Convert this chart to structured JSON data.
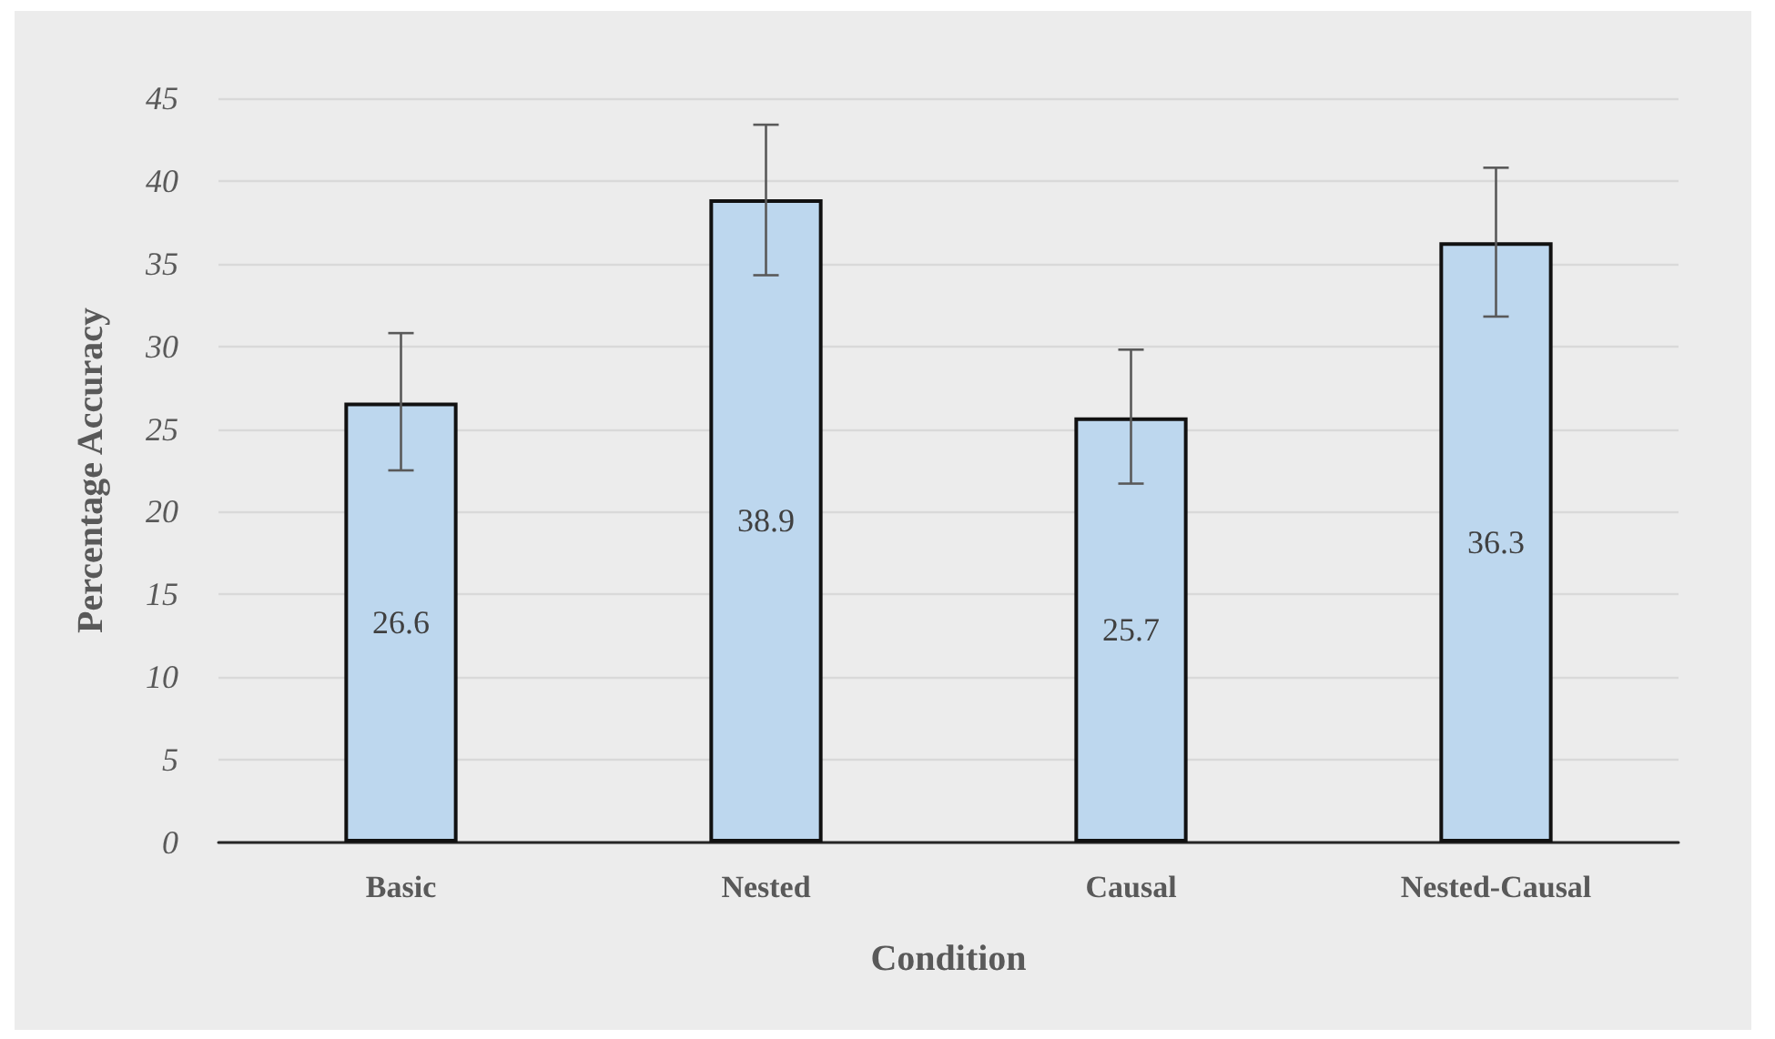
{
  "chart_data": {
    "type": "bar",
    "xlabel": "Condition",
    "ylabel": "Percentage Accuracy",
    "categories": [
      "Basic",
      "Nested",
      "Causal",
      "Nested-Causal"
    ],
    "values": [
      26.6,
      38.9,
      25.7,
      36.3
    ],
    "color": "#bdd7ee",
    "errors": [
      [
        22.5,
        30.8
      ],
      [
        34.3,
        43.4
      ],
      [
        21.7,
        29.8
      ],
      [
        31.8,
        40.8
      ]
    ],
    "ylim": [
      0,
      45
    ],
    "yticks": [
      0,
      5,
      10,
      15,
      20,
      25,
      30,
      35,
      40,
      45
    ],
    "grid": "y",
    "data_labels": true
  }
}
